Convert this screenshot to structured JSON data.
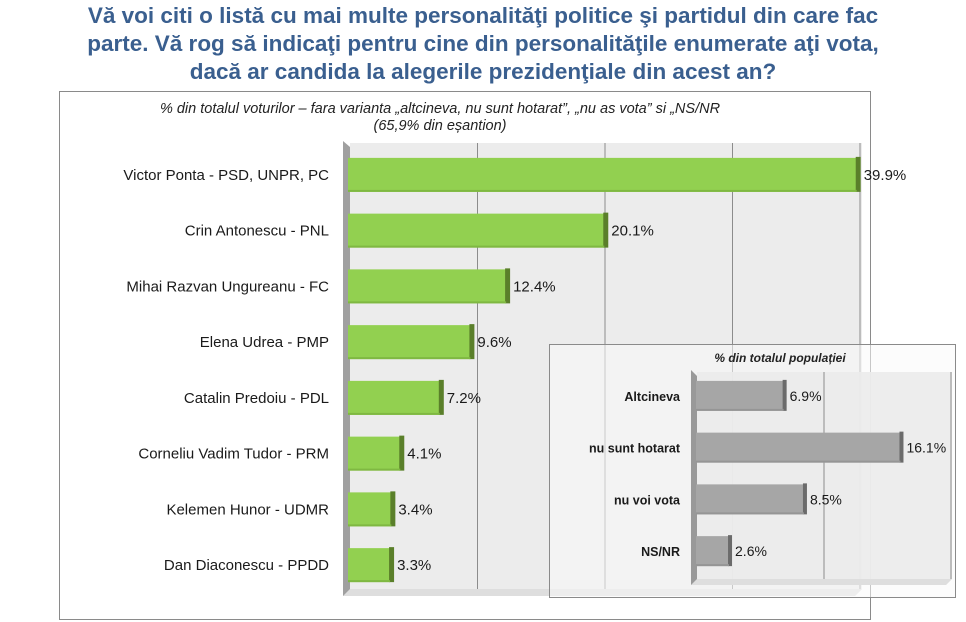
{
  "title_lines": [
    "Vă voi citi o listă cu mai multe personalităţi politice şi partidul din care fac",
    "parte. Vă rog să indicaţi pentru cine din personalităţile enumerate aţi vota,",
    "dacă ar candida la alegerile prezidenţiale din acest an?"
  ],
  "colors": {
    "title": "#3a5f8f",
    "main_bar": "#92d050",
    "main_bar_cap": "#5a7f2a",
    "inset_bar": "#a6a6a6",
    "inset_bar_cap": "#6b6b6b",
    "wall": "#a0a0a0",
    "plot_bg": "#ececec"
  },
  "chart_data": [
    {
      "type": "bar",
      "orientation": "horizontal",
      "title": "% din totalul voturilor – fara varianta „altcineva, nu sunt hotarat”, „nu as vota” si „NS/NR",
      "subtitle": "(65,9% din eșantion)",
      "categories": [
        "Victor Ponta - PSD, UNPR, PC",
        "Crin Antonescu - PNL",
        "Mihai Razvan Ungureanu - FC",
        "Elena Udrea - PMP",
        "Catalin Predoiu - PDL",
        "Corneliu Vadim Tudor - PRM",
        "Kelemen Hunor - UDMR",
        "Dan Diaconescu - PPDD"
      ],
      "values": [
        39.9,
        20.1,
        12.4,
        9.6,
        7.2,
        4.1,
        3.4,
        3.3
      ],
      "value_labels": [
        "39.9%",
        "20.1%",
        "12.4%",
        "9.6%",
        "7.2%",
        "4.1%",
        "3.4%",
        "3.3%"
      ],
      "xlim": [
        0,
        40
      ],
      "gridlines_at": [
        10,
        20,
        30,
        40
      ],
      "grid": true,
      "unit": "%"
    },
    {
      "type": "bar",
      "orientation": "horizontal",
      "title": "% din totalul populației",
      "categories": [
        "Altcineva",
        "nu sunt hotarat",
        "nu voi vota",
        "NS/NR"
      ],
      "values": [
        6.9,
        16.1,
        8.5,
        2.6
      ],
      "value_labels": [
        "6.9%",
        "16.1%",
        "8.5%",
        "2.6%"
      ],
      "xlim": [
        0,
        20
      ],
      "gridlines_at": [
        10,
        20
      ],
      "grid": true,
      "unit": "%",
      "placement": "bottom-right inset"
    }
  ]
}
